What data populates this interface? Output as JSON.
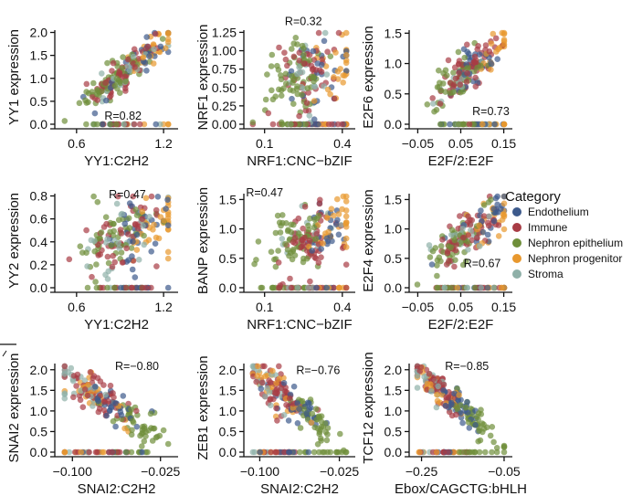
{
  "chart_data": [
    {
      "type": "scatter",
      "xlabel": "YY1:C2H2",
      "ylabel": "YY1 expression",
      "xticks": [
        "0.6",
        "1.2"
      ],
      "xtick_values": [
        0.6,
        1.2
      ],
      "xlim": [
        0.45,
        1.3
      ],
      "yticks": [
        "0.0",
        "0.5",
        "1.0",
        "1.5",
        "2.0"
      ],
      "ytick_values": [
        0,
        0.5,
        1,
        1.5,
        2
      ],
      "ylim": [
        0,
        2.05
      ],
      "annotation": "R=0.82",
      "annot_pos": [
        0.92,
        0.1
      ],
      "corr": 0.82,
      "seed": 11
    },
    {
      "type": "scatter",
      "xlabel": "NRF1:CNC−bZIF",
      "ylabel": "NRF1 expression",
      "xticks": [
        "0.1",
        "0.4"
      ],
      "xtick_values": [
        0.1,
        0.4
      ],
      "xlim": [
        0.02,
        0.45
      ],
      "yticks": [
        "0.00",
        "0.25",
        "0.50",
        "0.75",
        "1.00",
        "1.25"
      ],
      "ytick_values": [
        0,
        0.25,
        0.5,
        0.75,
        1,
        1.25
      ],
      "ylim": [
        0,
        1.28
      ],
      "annotation": "R=0.32",
      "annot_pos": [
        0.25,
        1.35
      ],
      "corr": 0.32,
      "seed": 23
    },
    {
      "type": "scatter",
      "xlabel": "E2F/2:E2F",
      "ylabel": "E2F6 expression",
      "xticks": [
        "−0.05",
        "0.05",
        "0.15"
      ],
      "xtick_values": [
        -0.05,
        0.05,
        0.15
      ],
      "xlim": [
        -0.07,
        0.17
      ],
      "yticks": [
        "0.0",
        "0.5",
        "1.0",
        "1.5"
      ],
      "ytick_values": [
        0,
        0.5,
        1,
        1.5
      ],
      "ylim": [
        0,
        1.55
      ],
      "annotation": "R=0.73",
      "annot_pos": [
        0.12,
        0.15
      ],
      "corr": 0.73,
      "seed": 37
    },
    {
      "type": "scatter",
      "xlabel": "YY1:C2H2",
      "ylabel": "YY2 expression",
      "xticks": [
        "0.6",
        "1.2"
      ],
      "xtick_values": [
        0.6,
        1.2
      ],
      "xlim": [
        0.45,
        1.3
      ],
      "yticks": [
        "0.0",
        "0.2",
        "0.4",
        "0.6",
        "0.8"
      ],
      "ytick_values": [
        0,
        0.2,
        0.4,
        0.6,
        0.8
      ],
      "ylim": [
        0,
        0.82
      ],
      "annotation": "R=0.47",
      "annot_pos": [
        0.95,
        0.78
      ],
      "corr": 0.47,
      "seed": 41
    },
    {
      "type": "scatter",
      "xlabel": "NRF1:CNC−bZIF",
      "ylabel": "BANP expression",
      "xticks": [
        "0.1",
        "0.4"
      ],
      "xtick_values": [
        0.1,
        0.4
      ],
      "xlim": [
        0.02,
        0.45
      ],
      "yticks": [
        "0.0",
        "0.5",
        "1.0",
        "1.5"
      ],
      "ytick_values": [
        0,
        0.5,
        1,
        1.5
      ],
      "ylim": [
        0,
        1.6
      ],
      "annotation": "R=0.47",
      "annot_pos": [
        0.1,
        1.55
      ],
      "corr": 0.47,
      "seed": 53
    },
    {
      "type": "scatter",
      "xlabel": "E2F/2:E2F",
      "ylabel": "E2F4 expression",
      "xticks": [
        "−0.05",
        "0.05",
        "0.15"
      ],
      "xtick_values": [
        -0.05,
        0.05,
        0.15
      ],
      "xlim": [
        -0.07,
        0.17
      ],
      "yticks": [
        "0.0",
        "0.5",
        "1.0",
        "1.5"
      ],
      "ytick_values": [
        0,
        0.5,
        1,
        1.5
      ],
      "ylim": [
        0,
        1.6
      ],
      "annotation": "R=0.67",
      "annot_pos": [
        0.1,
        0.35
      ],
      "corr": 0.67,
      "seed": 67
    },
    {
      "type": "scatter",
      "xlabel": "SNAI2:C2H2",
      "ylabel": "SNAI2 expression",
      "xticks": [
        "−0.100",
        "−0.025"
      ],
      "xtick_values": [
        -0.1,
        -0.025
      ],
      "xlim": [
        -0.115,
        -0.01
      ],
      "yticks": [
        "0.0",
        "0.5",
        "1.0",
        "1.5",
        "2.0"
      ],
      "ytick_values": [
        0,
        0.5,
        1,
        1.5,
        2
      ],
      "ylim": [
        0,
        2.15
      ],
      "annotation": "R=−0.80",
      "annot_pos": [
        -0.045,
        2.0
      ],
      "corr": -0.8,
      "seed": 71
    },
    {
      "type": "scatter",
      "xlabel": "SNAI2:C2H2",
      "ylabel": "ZEB1 expression",
      "xticks": [
        "−0.100",
        "−0.025"
      ],
      "xtick_values": [
        -0.1,
        -0.025
      ],
      "xlim": [
        -0.115,
        -0.01
      ],
      "yticks": [
        "0.0",
        "0.5",
        "1.0",
        "1.5",
        "2.0"
      ],
      "ytick_values": [
        0,
        0.5,
        1,
        1.5,
        2
      ],
      "ylim": [
        0,
        2.15
      ],
      "annotation": "R=−0.76",
      "annot_pos": [
        -0.045,
        1.9
      ],
      "corr": -0.76,
      "seed": 83
    },
    {
      "type": "scatter",
      "xlabel": "Ebox/CAGCTG:bHLH",
      "ylabel": "TCF12 expression",
      "xticks": [
        "−0.25",
        "−0.05"
      ],
      "xtick_values": [
        -0.25,
        -0.05
      ],
      "xlim": [
        -0.28,
        -0.03
      ],
      "yticks": [
        "0.0",
        "0.5",
        "1.0",
        "1.5",
        "2.0"
      ],
      "ytick_values": [
        0,
        0.5,
        1,
        1.5,
        2
      ],
      "ylim": [
        0,
        2.15
      ],
      "annotation": "R=−0.85",
      "annot_pos": [
        -0.14,
        2.0
      ],
      "corr": -0.85,
      "seed": 97
    }
  ],
  "legend": {
    "title": "Category",
    "items": [
      {
        "label": "Endothelium",
        "color": "#3d5a8c"
      },
      {
        "label": "Immune",
        "color": "#a83c45"
      },
      {
        "label": "Nephron epithelium",
        "color": "#6f8f3a"
      },
      {
        "label": "Nephron progenitor",
        "color": "#e8982e"
      },
      {
        "label": "Stroma",
        "color": "#8fb0a8"
      }
    ]
  }
}
